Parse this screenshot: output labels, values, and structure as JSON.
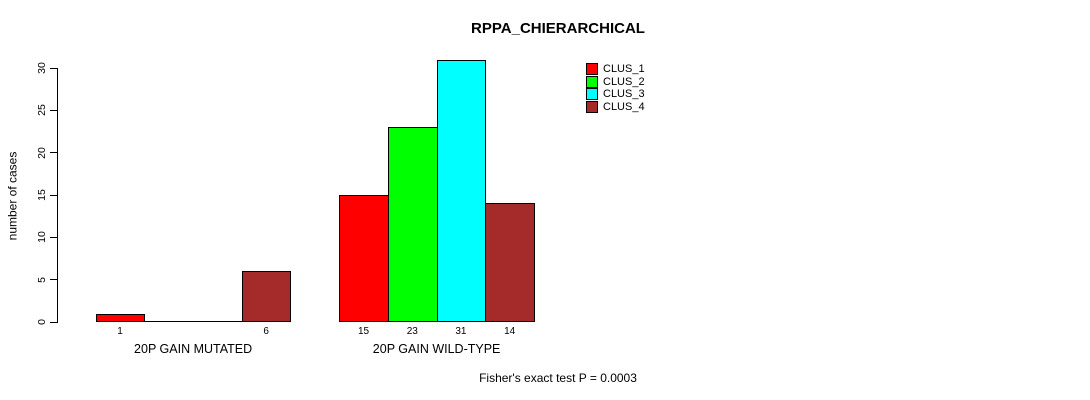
{
  "title": "RPPA_CHIERARCHICAL",
  "footer": "Fisher's exact test P = 0.0003",
  "chart_data": {
    "type": "bar",
    "title": "RPPA_CHIERARCHICAL",
    "xlabel": "",
    "ylabel": "number of cases",
    "ylim": [
      0,
      30
    ],
    "yticks": [
      0,
      5,
      10,
      15,
      20,
      25,
      30
    ],
    "categories": [
      "20P GAIN MUTATED",
      "20P GAIN WILD-TYPE"
    ],
    "series": [
      {
        "name": "CLUS_1",
        "color": "#ff0000",
        "values": [
          1,
          15
        ]
      },
      {
        "name": "CLUS_2",
        "color": "#00ff00",
        "values": [
          0,
          23
        ]
      },
      {
        "name": "CLUS_3",
        "color": "#00ffff",
        "values": [
          0,
          31
        ]
      },
      {
        "name": "CLUS_4",
        "color": "#a52a2a",
        "values": [
          6,
          14
        ]
      }
    ],
    "bar_value_labels": {
      "20P GAIN MUTATED": [
        "1",
        "",
        "",
        "6"
      ],
      "20P GAIN WILD-TYPE": [
        "15",
        "23",
        "31",
        "14"
      ]
    },
    "legend": [
      "CLUS_1",
      "CLUS_2",
      "CLUS_3",
      "CLUS_4"
    ],
    "legend_position": "top-right",
    "grid": false,
    "annotation": "Fisher's exact test P = 0.0003",
    "axis_color": "#000000",
    "bar_border_color": "#000000"
  }
}
